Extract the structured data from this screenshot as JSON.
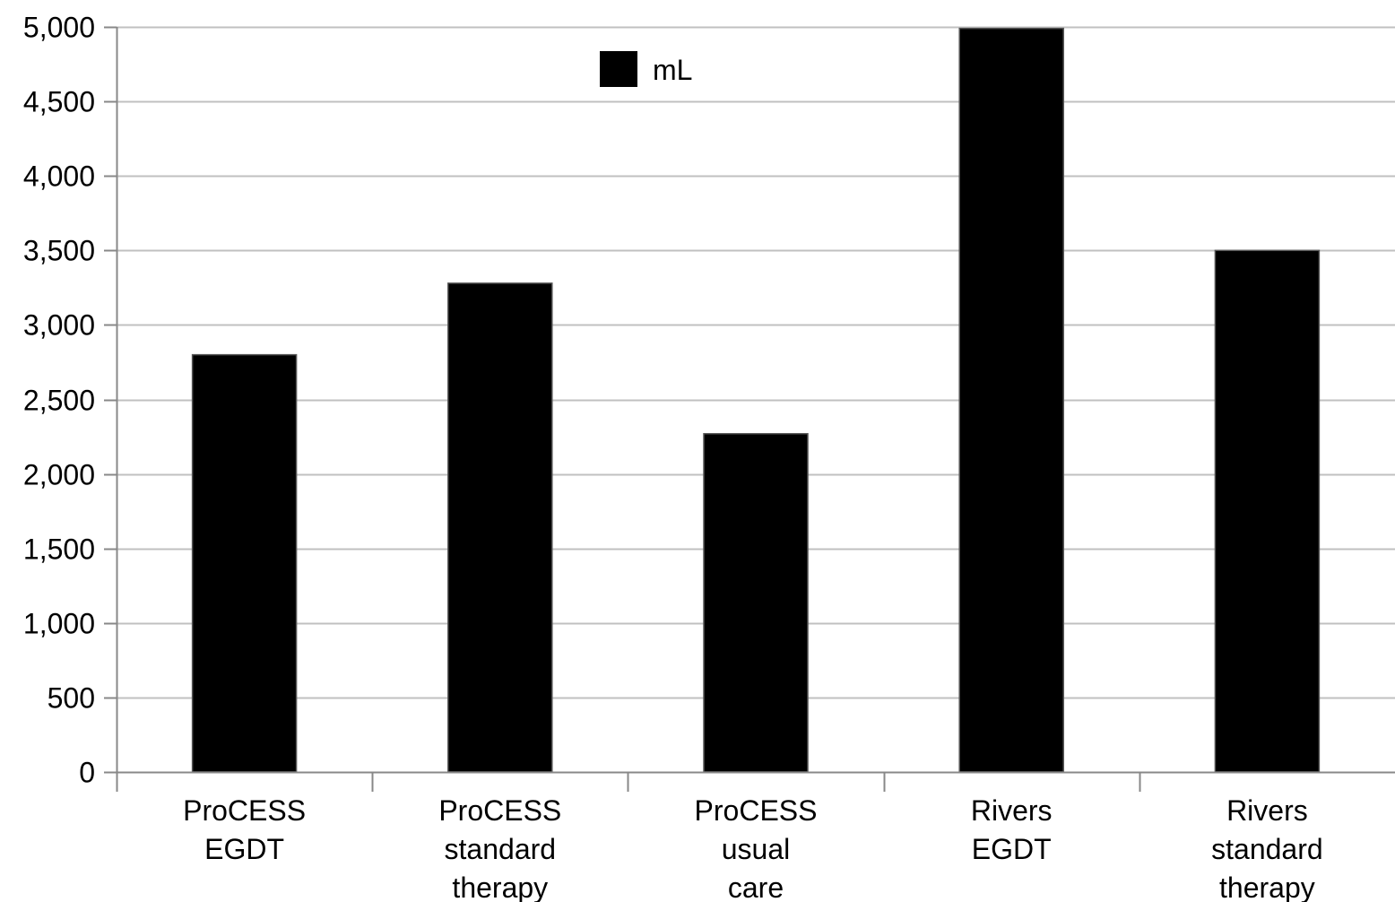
{
  "chart_data": {
    "type": "bar",
    "categories": [
      [
        "ProCESS",
        "EGDT"
      ],
      [
        "ProCESS",
        "standard",
        "therapy"
      ],
      [
        "ProCESS",
        "usual",
        "care"
      ],
      [
        "Rivers",
        "EGDT"
      ],
      [
        "Rivers",
        "standard",
        "therapy"
      ]
    ],
    "series": [
      {
        "name": "mL",
        "values": [
          2800,
          3280,
          2270,
          4990,
          3500
        ],
        "color": "#000000"
      }
    ],
    "ylim": [
      0,
      5000
    ],
    "yticks": [
      0,
      500,
      1000,
      1500,
      2000,
      2500,
      3000,
      3500,
      4000,
      4500,
      5000
    ],
    "ytick_labels": [
      "0",
      "500",
      "1,000",
      "1,500",
      "2,000",
      "2,500",
      "3,000",
      "3,500",
      "4,000",
      "4,500",
      "5,000"
    ],
    "grid": true,
    "gridline_color": "#c0c0c0",
    "legend_position": "top-center"
  }
}
